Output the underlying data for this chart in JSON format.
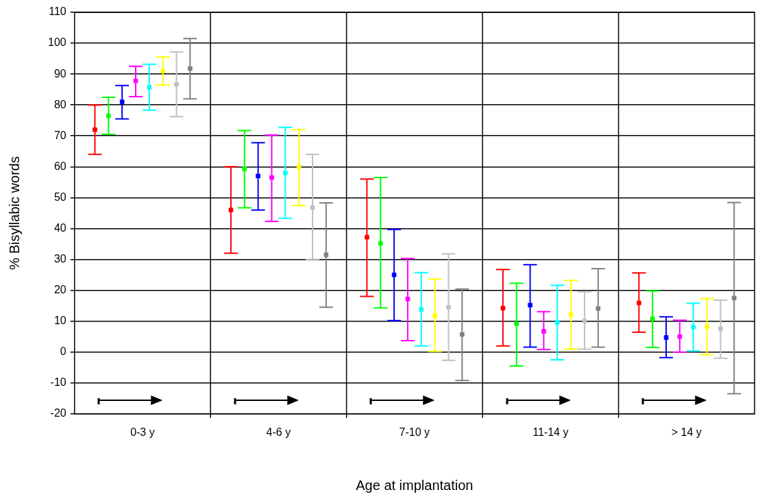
{
  "chart_data": {
    "type": "scatter",
    "xlabel": "Age at implantation",
    "ylabel": "% Bisyllabic words",
    "categories": [
      "0-3 y",
      "4-6 y",
      "7-10 y",
      "11-14 y",
      "> 14 y"
    ],
    "ylim": [
      -20,
      110
    ],
    "yticks": [
      -20,
      -10,
      0,
      10,
      20,
      30,
      40,
      50,
      60,
      70,
      80,
      90,
      100,
      110
    ],
    "grid": true,
    "legend": false,
    "marker": "square",
    "series": [
      {
        "color": "#ff0000",
        "values": [
          72,
          46,
          37.2,
          14.2,
          15.9
        ],
        "errors": [
          [
            64,
            80
          ],
          [
            32,
            60
          ],
          [
            18,
            56
          ],
          [
            2,
            26.7
          ],
          [
            6.4,
            25.6
          ]
        ]
      },
      {
        "color": "#00ff00",
        "values": [
          76.5,
          59.3,
          35.2,
          9.2,
          10.8
        ],
        "errors": [
          [
            70.5,
            82.5
          ],
          [
            46.7,
            71.7
          ],
          [
            14.3,
            56.5
          ],
          [
            -4.5,
            22.3
          ],
          [
            1.5,
            19.8
          ]
        ]
      },
      {
        "color": "#0000ff",
        "values": [
          81,
          57,
          25,
          15.2,
          4.7
        ],
        "errors": [
          [
            75.5,
            86.3
          ],
          [
            46,
            67.8
          ],
          [
            10.2,
            39.7
          ],
          [
            1.6,
            28.3
          ],
          [
            -1.8,
            11.4
          ]
        ]
      },
      {
        "color": "#ff00ff",
        "values": [
          87.8,
          56.5,
          17.2,
          6.7,
          5
        ],
        "errors": [
          [
            82.7,
            92.5
          ],
          [
            42.3,
            70.3
          ],
          [
            3.7,
            30.3
          ],
          [
            0.8,
            13.1
          ],
          [
            0,
            10.3
          ]
        ]
      },
      {
        "color": "#00ffff",
        "values": [
          85.7,
          58,
          13.8,
          9.6,
          8.1
        ],
        "errors": [
          [
            78.3,
            93.2
          ],
          [
            43.3,
            72.8
          ],
          [
            2,
            25.7
          ],
          [
            -2.5,
            21.6
          ],
          [
            0.3,
            15.8
          ]
        ]
      },
      {
        "color": "#ffff00",
        "values": [
          91,
          60,
          11.8,
          12.2,
          8.2
        ],
        "errors": [
          [
            86.5,
            95.5
          ],
          [
            47.5,
            72
          ],
          [
            0.2,
            23.6
          ],
          [
            0.9,
            23.2
          ],
          [
            -0.9,
            17.3
          ]
        ]
      },
      {
        "color": "#c0c0c0",
        "values": [
          86.7,
          46.8,
          14.5,
          10.1,
          7.5
        ],
        "errors": [
          [
            76.2,
            97.2
          ],
          [
            30,
            64
          ],
          [
            -2.7,
            31.8
          ],
          [
            0.9,
            19.5
          ],
          [
            -2,
            16.8
          ]
        ]
      },
      {
        "color": "#808080",
        "values": [
          91.8,
          31.5,
          5.7,
          14.1,
          17.5
        ],
        "errors": [
          [
            82,
            101.5
          ],
          [
            14.5,
            48.3
          ],
          [
            -9.2,
            20.4
          ],
          [
            1.6,
            27
          ],
          [
            -13.5,
            48.4
          ]
        ]
      }
    ]
  }
}
